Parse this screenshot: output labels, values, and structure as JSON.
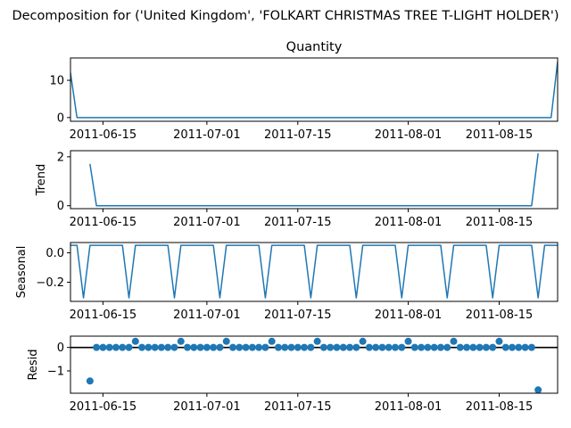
{
  "figure": {
    "suptitle": "Decomposition for ('United Kingdom', 'FOLKART CHRISTMAS TREE T-LIGHT HOLDER')"
  },
  "chart_data": [
    {
      "type": "line",
      "title": "Quantity",
      "ylabel": "",
      "xlim": [
        "2011-06-10",
        "2011-08-24"
      ],
      "ylim": [
        -1,
        16
      ],
      "yticks": [
        0,
        10
      ],
      "xticks": [
        "2011-06-15",
        "2011-07-01",
        "2011-07-15",
        "2011-08-01",
        "2011-08-15"
      ],
      "color": "#1f77b4",
      "series": [
        {
          "x": [
            "2011-06-10",
            "2011-06-11",
            "2011-08-23",
            "2011-08-24"
          ],
          "y": [
            12,
            0,
            0,
            15
          ]
        }
      ]
    },
    {
      "type": "line",
      "title": "",
      "ylabel": "Trend",
      "xlim": [
        "2011-06-10",
        "2011-08-24"
      ],
      "ylim": [
        -0.12,
        2.25
      ],
      "yticks": [
        0,
        2
      ],
      "xticks": [
        "2011-06-15",
        "2011-07-01",
        "2011-07-15",
        "2011-08-01",
        "2011-08-15"
      ],
      "color": "#1f77b4",
      "series": [
        {
          "x": [
            "2011-06-13",
            "2011-06-14",
            "2011-08-20",
            "2011-08-21"
          ],
          "y": [
            1.71,
            0,
            0,
            2.14
          ]
        }
      ]
    },
    {
      "type": "line",
      "title": "",
      "ylabel": "Seasonal",
      "xlim": [
        "2011-06-10",
        "2011-08-24"
      ],
      "ylim": [
        -0.33,
        0.07
      ],
      "yticks": [
        0.0,
        -0.2
      ],
      "xticks": [
        "2011-06-15",
        "2011-07-01",
        "2011-07-15",
        "2011-08-01",
        "2011-08-15"
      ],
      "color": "#1f77b4",
      "weekly_pattern": {
        "start_date": "2011-06-10",
        "period_days": 7,
        "values": [
          0.051,
          0.051,
          -0.306,
          0.051,
          0.051,
          0.051,
          0.051
        ]
      }
    },
    {
      "type": "scatter",
      "title": "",
      "ylabel": "Resid",
      "xlim": [
        "2011-06-10",
        "2011-08-24"
      ],
      "ylim": [
        -1.95,
        0.48
      ],
      "yticks": [
        0,
        -1
      ],
      "xticks": [
        "2011-06-15",
        "2011-07-01",
        "2011-07-15",
        "2011-08-01",
        "2011-08-15"
      ],
      "color": "#1f77b4",
      "baseline": 0,
      "points": {
        "range": [
          "2011-06-13",
          "2011-08-21"
        ],
        "default_y": 0.0,
        "exceptions": [
          {
            "x": "2011-06-13",
            "y": -1.43
          },
          {
            "x": "2011-06-20",
            "y": 0.26
          },
          {
            "x": "2011-06-27",
            "y": 0.26
          },
          {
            "x": "2011-07-04",
            "y": 0.26
          },
          {
            "x": "2011-07-11",
            "y": 0.26
          },
          {
            "x": "2011-07-18",
            "y": 0.26
          },
          {
            "x": "2011-07-25",
            "y": 0.26
          },
          {
            "x": "2011-08-01",
            "y": 0.26
          },
          {
            "x": "2011-08-08",
            "y": 0.26
          },
          {
            "x": "2011-08-15",
            "y": 0.26
          },
          {
            "x": "2011-08-21",
            "y": -1.81
          }
        ]
      }
    }
  ]
}
